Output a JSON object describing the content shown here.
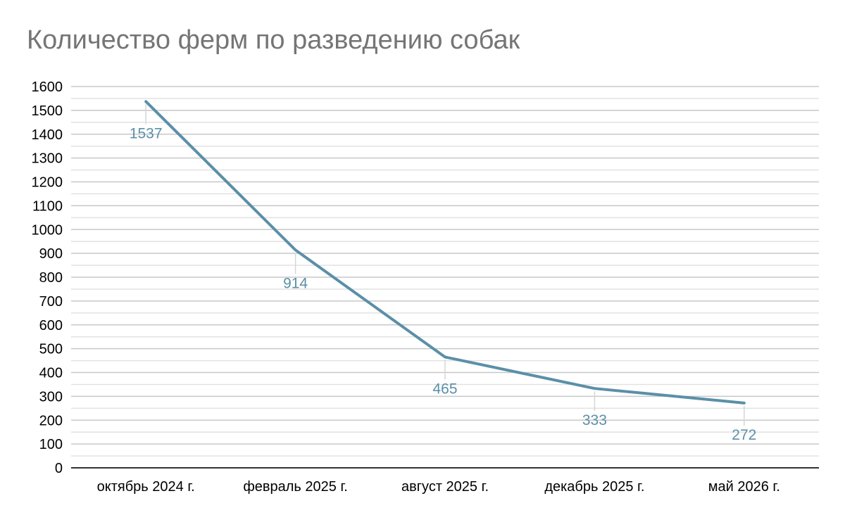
{
  "chart_data": {
    "type": "line",
    "title": "Количество ферм по разведению собак",
    "xlabel": "",
    "ylabel": "",
    "categories": [
      "октябрь 2024 г.",
      "февраль 2025 г.",
      "август 2025 г.",
      "декабрь 2025 г.",
      "май 2026 г."
    ],
    "series": [
      {
        "values": [
          1537,
          914,
          465,
          333,
          272
        ],
        "color": "#5b8fa8"
      }
    ],
    "data_labels": [
      "1537",
      "914",
      "465",
      "333",
      "272"
    ],
    "ylim": [
      0,
      1600
    ],
    "y_major_step": 100,
    "y_minor_step": 50,
    "y_ticks": [
      "0",
      "100",
      "200",
      "300",
      "400",
      "500",
      "600",
      "700",
      "800",
      "900",
      "1000",
      "1100",
      "1200",
      "1300",
      "1400",
      "1500",
      "1600"
    ],
    "grid": true,
    "legend": "none",
    "colors": {
      "line": "#5b8fa8",
      "label": "#5b8fa8",
      "major_grid": "#c8c8c8",
      "minor_grid": "#e2e2e2",
      "axis": "#333333",
      "title": "#757575"
    }
  }
}
